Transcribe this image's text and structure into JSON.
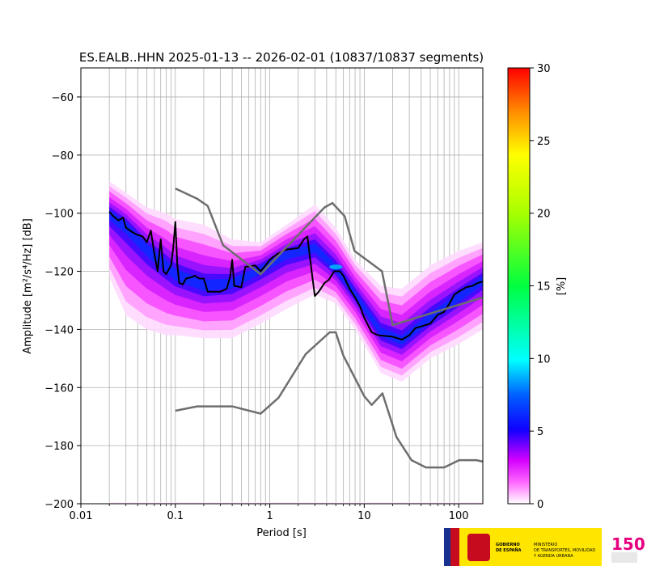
{
  "chart_data": {
    "type": "heatmap",
    "title": "ES.EALB..HHN   2025-01-13 -- 2026-02-01  (10837/10837 segments)",
    "xlabel": "Period [s]",
    "ylabel": "Amplitude [m²/s⁴/Hz] [dB]",
    "xscale": "log",
    "xlim": [
      0.01,
      180
    ],
    "ylim": [
      -200,
      -50
    ],
    "grid": true,
    "x_ticks": [
      {
        "value": 0.01,
        "label": "0.01"
      },
      {
        "value": 0.1,
        "label": "0.1"
      },
      {
        "value": 1,
        "label": "1"
      },
      {
        "value": 10,
        "label": "10"
      },
      {
        "value": 100,
        "label": "100"
      }
    ],
    "y_ticks": [
      {
        "value": -60,
        "label": "−60"
      },
      {
        "value": -80,
        "label": "−80"
      },
      {
        "value": -100,
        "label": "−100"
      },
      {
        "value": -120,
        "label": "−120"
      },
      {
        "value": -140,
        "label": "−140"
      },
      {
        "value": -160,
        "label": "−160"
      },
      {
        "value": -180,
        "label": "−180"
      },
      {
        "value": -200,
        "label": "−200"
      }
    ],
    "colorbar": {
      "label": "[%]",
      "min": 0,
      "max": 30,
      "ticks": [
        {
          "value": 0,
          "label": "0"
        },
        {
          "value": 5,
          "label": "5"
        },
        {
          "value": 10,
          "label": "10"
        },
        {
          "value": 15,
          "label": "15"
        },
        {
          "value": 20,
          "label": "20"
        },
        {
          "value": 25,
          "label": "25"
        },
        {
          "value": 30,
          "label": "30"
        }
      ]
    },
    "density_band": [
      {
        "x": 0.02,
        "lo": -122,
        "hi": -89,
        "mode": -100
      },
      {
        "x": 0.03,
        "lo": -135,
        "hi": -93,
        "mode": -104
      },
      {
        "x": 0.05,
        "lo": -140,
        "hi": -98,
        "mode": -112
      },
      {
        "x": 0.08,
        "lo": -142,
        "hi": -100,
        "mode": -118
      },
      {
        "x": 0.1,
        "lo": -142,
        "hi": -102,
        "mode": -121
      },
      {
        "x": 0.2,
        "lo": -143,
        "hi": -104,
        "mode": -125
      },
      {
        "x": 0.4,
        "lo": -143,
        "hi": -109,
        "mode": -124
      },
      {
        "x": 0.8,
        "lo": -138,
        "hi": -110,
        "mode": -119
      },
      {
        "x": 1.5,
        "lo": -133,
        "hi": -104,
        "mode": -114
      },
      {
        "x": 3,
        "lo": -128,
        "hi": -97,
        "mode": -112
      },
      {
        "x": 5,
        "lo": -131,
        "hi": -105,
        "mode": -119
      },
      {
        "x": 8,
        "lo": -140,
        "hi": -116,
        "mode": -128
      },
      {
        "x": 15,
        "lo": -155,
        "hi": -125,
        "mode": -141
      },
      {
        "x": 25,
        "lo": -158,
        "hi": -126,
        "mode": -144
      },
      {
        "x": 50,
        "lo": -150,
        "hi": -118,
        "mode": -136
      },
      {
        "x": 100,
        "lo": -145,
        "hi": -113,
        "mode": -129
      },
      {
        "x": 180,
        "lo": -140,
        "hi": -110,
        "mode": -123
      }
    ],
    "series": [
      {
        "color": "#000000",
        "points": [
          [
            0.02,
            -99.5
          ],
          [
            0.022,
            -101
          ],
          [
            0.025,
            -102.5
          ],
          [
            0.028,
            -101.5
          ],
          [
            0.03,
            -105
          ],
          [
            0.035,
            -106.5
          ],
          [
            0.04,
            -107.5
          ],
          [
            0.045,
            -108
          ],
          [
            0.05,
            -110
          ],
          [
            0.055,
            -106
          ],
          [
            0.06,
            -114
          ],
          [
            0.065,
            -120
          ],
          [
            0.07,
            -109
          ],
          [
            0.075,
            -120
          ],
          [
            0.08,
            -121
          ],
          [
            0.09,
            -118
          ],
          [
            0.095,
            -112
          ],
          [
            0.1,
            -103
          ],
          [
            0.105,
            -118
          ],
          [
            0.11,
            -124
          ],
          [
            0.12,
            -124.5
          ],
          [
            0.13,
            -122.5
          ],
          [
            0.15,
            -122
          ],
          [
            0.16,
            -121.5
          ],
          [
            0.18,
            -122.5
          ],
          [
            0.2,
            -122.5
          ],
          [
            0.22,
            -127
          ],
          [
            0.3,
            -127
          ],
          [
            0.35,
            -126
          ],
          [
            0.38,
            -122
          ],
          [
            0.4,
            -116
          ],
          [
            0.42,
            -125
          ],
          [
            0.5,
            -125.5
          ],
          [
            0.55,
            -118.5
          ],
          [
            0.7,
            -118
          ],
          [
            0.8,
            -120
          ],
          [
            0.9,
            -118
          ],
          [
            1.0,
            -116
          ],
          [
            1.2,
            -114
          ],
          [
            1.5,
            -112.5
          ],
          [
            2.0,
            -112
          ],
          [
            2.3,
            -109
          ],
          [
            2.5,
            -108
          ],
          [
            2.8,
            -121
          ],
          [
            3.0,
            -128.5
          ],
          [
            3.3,
            -127
          ],
          [
            3.8,
            -124
          ],
          [
            4.2,
            -123
          ],
          [
            4.8,
            -120
          ],
          [
            5.5,
            -120
          ],
          [
            6.0,
            -121.5
          ],
          [
            7.0,
            -126
          ],
          [
            8.0,
            -129
          ],
          [
            9.0,
            -132
          ],
          [
            10,
            -136
          ],
          [
            12,
            -141
          ],
          [
            14,
            -142
          ],
          [
            20,
            -142.5
          ],
          [
            25,
            -143.5
          ],
          [
            30,
            -142
          ],
          [
            35,
            -139.5
          ],
          [
            40,
            -139
          ],
          [
            50,
            -138
          ],
          [
            60,
            -135
          ],
          [
            70,
            -134
          ],
          [
            80,
            -131
          ],
          [
            90,
            -128
          ],
          [
            100,
            -127
          ],
          [
            120,
            -125.5
          ],
          [
            140,
            -125
          ],
          [
            160,
            -124
          ],
          [
            180,
            -123.5
          ]
        ]
      },
      {
        "color": "#6e6e6e",
        "points": [
          [
            0.1,
            -91.5
          ],
          [
            0.17,
            -95
          ],
          [
            0.22,
            -97.5
          ],
          [
            0.32,
            -111
          ],
          [
            0.8,
            -121
          ],
          [
            3.8,
            -98
          ],
          [
            4.6,
            -96.5
          ],
          [
            6.2,
            -101
          ],
          [
            7.9,
            -113
          ],
          [
            15.4,
            -120
          ],
          [
            20,
            -138.5
          ],
          [
            180,
            -129
          ]
        ]
      },
      {
        "color": "#6e6e6e",
        "points": [
          [
            0.1,
            -168
          ],
          [
            0.17,
            -166.5
          ],
          [
            0.4,
            -166.5
          ],
          [
            0.8,
            -169
          ],
          [
            1.24,
            -163.5
          ],
          [
            2.4,
            -148.5
          ],
          [
            4.3,
            -141
          ],
          [
            5.0,
            -141
          ],
          [
            6.0,
            -149
          ],
          [
            10,
            -163
          ],
          [
            12,
            -166
          ],
          [
            15.6,
            -162
          ],
          [
            21.9,
            -177
          ],
          [
            31.6,
            -185
          ],
          [
            45,
            -187.5
          ],
          [
            70,
            -187.5
          ],
          [
            101,
            -185
          ],
          [
            154,
            -185
          ],
          [
            180,
            -185.5
          ]
        ]
      }
    ]
  },
  "logos": {
    "gov_line1": "GOBIERNO",
    "gov_line2": "DE ESPAÑA",
    "ministry_line1": "MINISTERIO",
    "ministry_line2": "DE TRANSPORTES, MOVILIDAD",
    "ministry_line3": "Y AGENDA URBANA",
    "ign_mark": "150"
  },
  "colors": {
    "black_line": "#000000",
    "gray_line": "#6e6e6e",
    "grid": "#b0b0b0",
    "logo_yellow": "#ffe600"
  }
}
